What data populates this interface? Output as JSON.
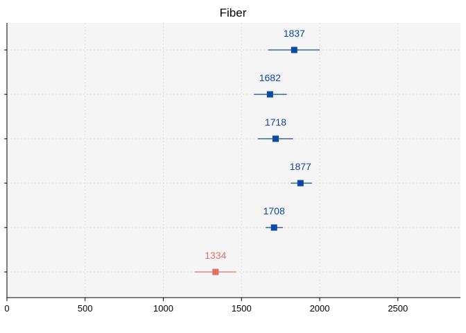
{
  "chart_data": {
    "type": "scatter",
    "title": "Fiber",
    "xlabel": "",
    "ylabel": "",
    "xlim": [
      0,
      2900
    ],
    "xticks": [
      0,
      500,
      1000,
      1500,
      2000,
      2500
    ],
    "grid": true,
    "points": [
      {
        "value": 1837,
        "low": 1670,
        "high": 2000,
        "label": "1837",
        "color": "#0d47a1"
      },
      {
        "value": 1682,
        "low": 1580,
        "high": 1790,
        "label": "1682",
        "color": "#0d47a1"
      },
      {
        "value": 1718,
        "low": 1605,
        "high": 1830,
        "label": "1718",
        "color": "#0d47a1"
      },
      {
        "value": 1877,
        "low": 1815,
        "high": 1950,
        "label": "1877",
        "color": "#0d47a1"
      },
      {
        "value": 1708,
        "low": 1655,
        "high": 1765,
        "label": "1708",
        "color": "#0d47a1"
      },
      {
        "value": 1334,
        "low": 1200,
        "high": 1465,
        "label": "1334",
        "color": "#e07060"
      }
    ]
  }
}
